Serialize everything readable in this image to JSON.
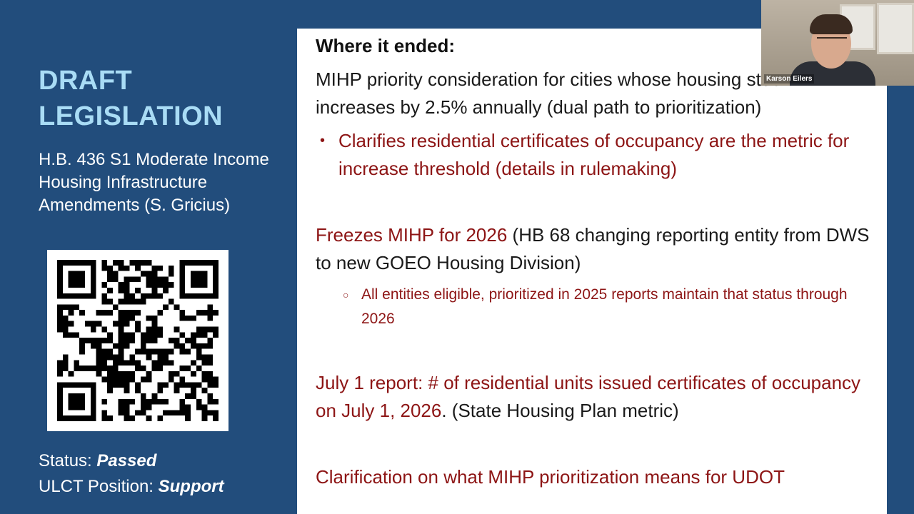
{
  "sidebar": {
    "title_line1": "DRAFT",
    "title_line2": "LEGISLATION",
    "bill_name": "H.B. 436 S1 Moderate Income Housing Infrastructure Amendments (S. Gricius)",
    "status_label": "Status: ",
    "status_value": "Passed",
    "position_label": "ULCT Position: ",
    "position_value": "Support",
    "qr_icon": "qr-code-icon"
  },
  "slide": {
    "heading": "Where it ended:",
    "p1": "MIHP priority consideration for cities whose housing stock increases by 2.5% annually (dual path to prioritization)",
    "bullet1": "Clarifies residential certificates of occupancy are the metric for increase threshold (details in rulemaking)",
    "p2_red": "Freezes MIHP for 2026",
    "p2_black": " (HB 68 changing reporting entity from DWS to new GOEO Housing Division)",
    "sub_bullet1": "All entities eligible, prioritized in 2025 reports maintain that status through 2026",
    "p3_red": "July 1 report: # of residential units issued certificates of occupancy on July 1, 2026",
    "p3_black": ". (State Housing Plan metric)",
    "p4": "Clarification on what MIHP prioritization means for UDOT"
  },
  "webcam": {
    "participant_name": "Karson Eilers"
  },
  "colors": {
    "background": "#224d7c",
    "title_accent": "#a9dcf5",
    "emphasis_red": "#8d1515"
  }
}
